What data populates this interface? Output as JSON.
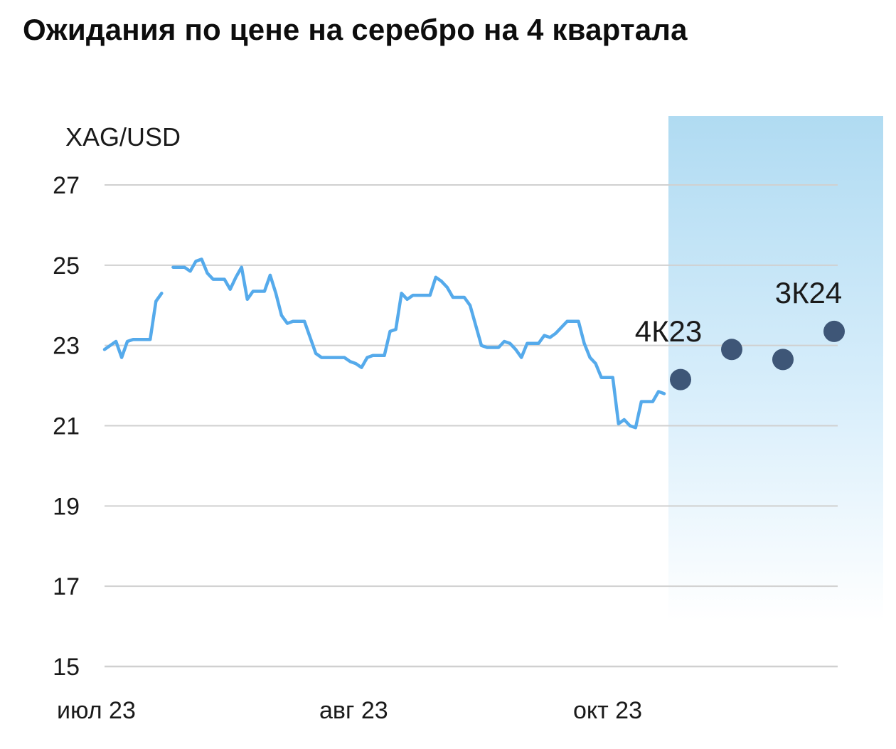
{
  "chart_data": {
    "type": "line",
    "title": "Ожидания по цене на серебро на 4 квартала",
    "ylabel": "XAG/USD",
    "ylim": [
      15,
      27
    ],
    "yticks": [
      27,
      25,
      23,
      21,
      19,
      17,
      15
    ],
    "grid": true,
    "x_tick_labels": [
      "июл 23",
      "авг 23",
      "окт 23"
    ],
    "series": [
      {
        "values": [
          22.9,
          23.0,
          23.1,
          22.7,
          23.1,
          23.15,
          23.15,
          23.15,
          23.15,
          24.1,
          24.3,
          null,
          24.95,
          24.95,
          24.95,
          24.85,
          25.1,
          25.15,
          24.8,
          24.65,
          24.65,
          24.65,
          24.4,
          24.7,
          24.95,
          24.15,
          24.35,
          24.35,
          24.35,
          24.75,
          24.3,
          23.75,
          23.55,
          23.6,
          23.6,
          23.6,
          23.2,
          22.8,
          22.7,
          22.7,
          22.7,
          22.7,
          22.7,
          22.6,
          22.55,
          22.45,
          22.7,
          22.75,
          22.75,
          22.75,
          23.35,
          23.4,
          24.3,
          24.15,
          24.25,
          24.25,
          24.25,
          24.25,
          24.7,
          24.6,
          24.45,
          24.2,
          24.2,
          24.2,
          24.0,
          23.5,
          23.0,
          22.95,
          22.95,
          22.95,
          23.1,
          23.05,
          22.9,
          22.7,
          23.05,
          23.05,
          23.05,
          23.25,
          23.2,
          23.3,
          23.45,
          23.6,
          23.6,
          23.6,
          23.05,
          22.7,
          22.55,
          22.2,
          22.2,
          22.2,
          21.05,
          21.15,
          21.0,
          20.95,
          21.6,
          21.6,
          21.6,
          21.85,
          21.8
        ]
      }
    ],
    "forecast": {
      "points": [
        22.15,
        22.9,
        22.65,
        23.35
      ],
      "labels": [
        "4К23",
        "3К24"
      ],
      "labeled_point_indices": [
        0,
        3
      ]
    },
    "colors": {
      "line": "#55aaeb",
      "forecast_dot": "#3e5677",
      "grid": "#d0d0d0",
      "zone_top": "#b0dbf2",
      "zone_bottom": "#ffffff"
    }
  }
}
